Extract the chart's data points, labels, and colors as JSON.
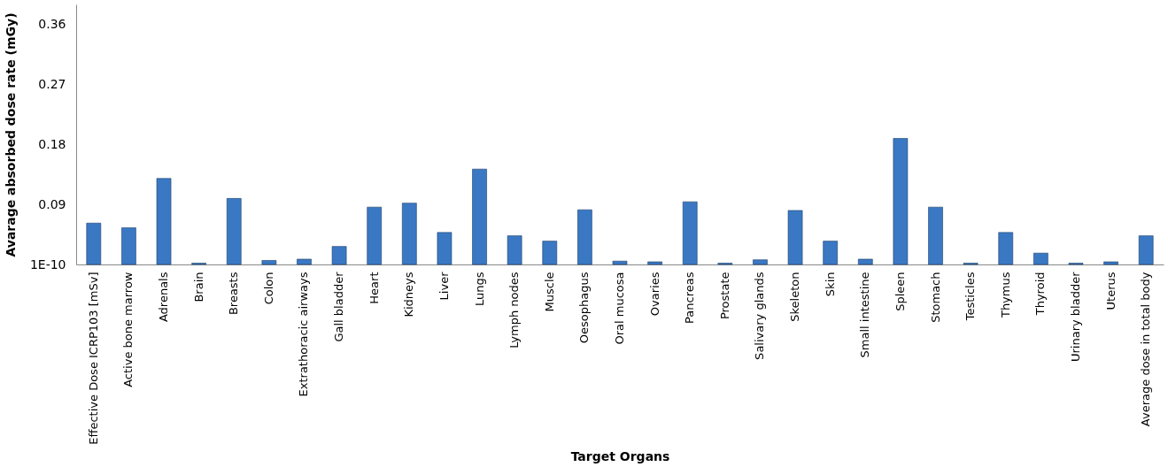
{
  "chart_data": {
    "type": "bar",
    "xlabel": "Target Organs",
    "ylabel": "Avarage absorbed dose rate (mGy)",
    "categories": [
      "Effective Dose ICRP103 [mSv]",
      "Active bone marrow",
      "Adrenals",
      "Brain",
      "Breasts",
      "Colon",
      "Extrathoracic airways",
      "Gall bladder",
      "Heart",
      "Kidneys",
      "Liver",
      "Lungs",
      "Lymph nodes",
      "Muscle",
      "Oesophagus",
      "Oral mucosa",
      "Ovaries",
      "Pancreas",
      "Prostate",
      "Salivary glands",
      "Skeleton",
      "Skin",
      "Small intestine",
      "Spleen",
      "Stomach",
      "Testicles",
      "Thymus",
      "Thyroid",
      "Urinary bladder",
      "Uterus",
      "Average dose in total body"
    ],
    "values": [
      0.062,
      0.055,
      0.129,
      0.002,
      0.099,
      0.006,
      0.008,
      0.027,
      0.086,
      0.092,
      0.048,
      0.143,
      0.043,
      0.035,
      0.082,
      0.005,
      0.004,
      0.094,
      0.002,
      0.007,
      0.081,
      0.035,
      0.008,
      0.189,
      0.086,
      0.002,
      0.048,
      0.017,
      0.002,
      0.004,
      0.043
    ],
    "color": "#3a78c4",
    "ylim": [
      1e-10,
      0.39
    ],
    "yticks": [
      {
        "value": 1e-10,
        "label": "1E-10"
      },
      0.09,
      0.18,
      0.27,
      0.36
    ],
    "grid": false
  }
}
